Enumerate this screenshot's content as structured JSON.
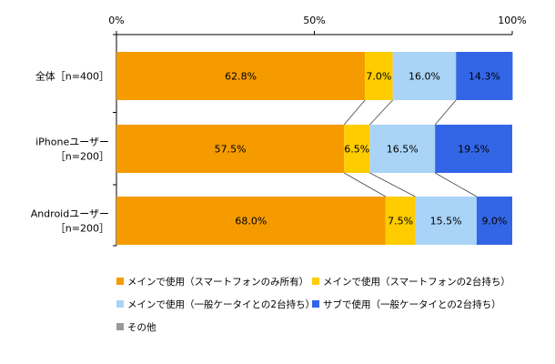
{
  "chart_data": {
    "type": "bar",
    "orientation": "horizontal",
    "stacked": true,
    "percent_stacked": true,
    "xlim": [
      0,
      100
    ],
    "x_ticks": [
      "0%",
      "50%",
      "100%"
    ],
    "categories": [
      [
        "全体［n=400］"
      ],
      [
        "iPhoneユーザー",
        "［n=200］"
      ],
      [
        "Androidユーザー",
        "［n=200］"
      ]
    ],
    "series": [
      {
        "name": "メインで使用（スマートフォンのみ所有）",
        "color": "#f59b00",
        "values": [
          62.8,
          57.5,
          68.0
        ],
        "labels": [
          "62.8%",
          "57.5%",
          "68.0%"
        ]
      },
      {
        "name": "メインで使用（スマートフォンの2台持ち）",
        "color": "#ffcc00",
        "values": [
          7.0,
          6.5,
          7.5
        ],
        "labels": [
          "7.0%",
          "6.5%",
          "7.5%"
        ]
      },
      {
        "name": "メインで使用（一般ケータイとの2台持ち）",
        "color": "#a9d3f7",
        "values": [
          16.0,
          16.5,
          15.5
        ],
        "labels": [
          "16.0%",
          "16.5%",
          "15.5%"
        ]
      },
      {
        "name": "サブで使用（一般ケータイとの2台持ち）",
        "color": "#3366e6",
        "values": [
          14.3,
          19.5,
          9.0
        ],
        "labels": [
          "14.3%",
          "19.5%",
          "9.0%"
        ]
      },
      {
        "name": "その他",
        "color": "#999999",
        "values": [
          0,
          0,
          0
        ],
        "labels": [
          "",
          "",
          ""
        ]
      }
    ],
    "grid": false,
    "series_lines": true,
    "legend_position": "bottom"
  }
}
